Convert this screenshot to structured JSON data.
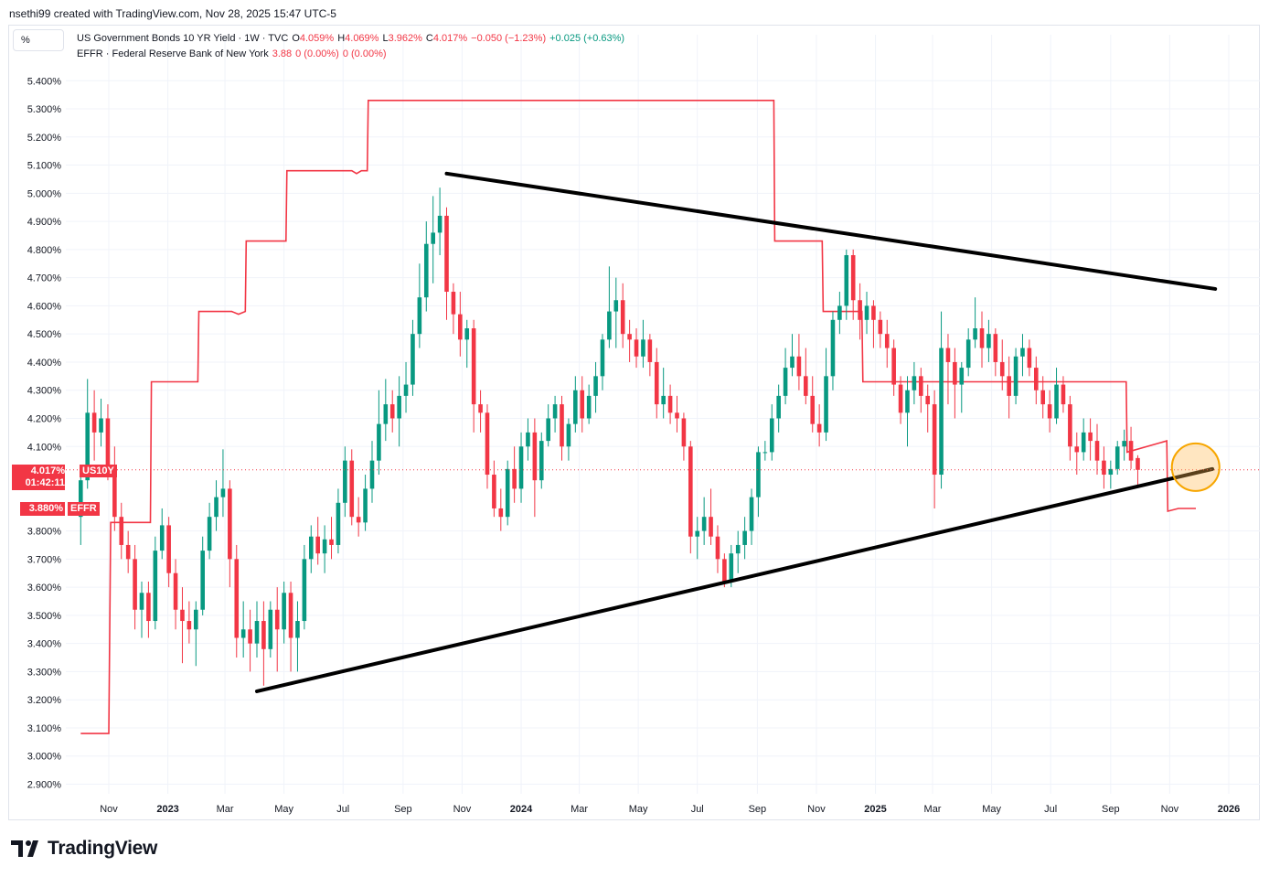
{
  "header": {
    "created_by": "nsethi99 created with TradingView.com, Nov 28, 2025 15:47 UTC-5"
  },
  "scale_button": "%",
  "legend": {
    "line1": {
      "symbol": "US Government Bonds 10 YR Yield · 1W · TVC",
      "o_label": "O",
      "o_value": "4.059%",
      "h_label": "H",
      "h_value": "4.069%",
      "l_label": "L",
      "l_value": "3.962%",
      "c_label": "C",
      "c_value": "4.017%",
      "change": "−0.050 (−1.23%)",
      "extra": "+0.025 (+0.63%)"
    },
    "line2": {
      "symbol": "EFFR · Federal Reserve Bank of New York",
      "value": "3.88",
      "change1": "0 (0.00%)",
      "change2": "0 (0.00%)"
    }
  },
  "price_tags": {
    "us10y_value": "4.017%",
    "us10y_symbol": "US10Y",
    "us10y_timer": "01:42:11",
    "effr_value": "3.880%",
    "effr_symbol": "EFFR"
  },
  "colors": {
    "up": "#089981",
    "down": "#f23645",
    "effr_line": "#f23645",
    "trendline": "#000000",
    "highlight": "#f7a600"
  },
  "footer": {
    "brand": "TradingView"
  },
  "chart_data": {
    "type": "candlestick",
    "title": "US Government Bonds 10 YR Yield · 1W · TVC",
    "y_axis": {
      "ticks": [
        "5.400%",
        "5.300%",
        "5.200%",
        "5.100%",
        "5.000%",
        "4.900%",
        "4.800%",
        "4.700%",
        "4.600%",
        "4.500%",
        "4.400%",
        "4.300%",
        "4.200%",
        "4.100%",
        "3.800%",
        "3.700%",
        "3.600%",
        "3.500%",
        "3.400%",
        "3.300%",
        "3.200%",
        "3.100%",
        "3.000%",
        "2.900%"
      ],
      "ylim": [
        2.86,
        5.51
      ]
    },
    "x_axis": {
      "ticks": [
        {
          "label": "Nov",
          "date": "2022-11-01",
          "bold": false
        },
        {
          "label": "2023",
          "date": "2023-01-01",
          "bold": true
        },
        {
          "label": "Mar",
          "date": "2023-03-01",
          "bold": false
        },
        {
          "label": "May",
          "date": "2023-05-01",
          "bold": false
        },
        {
          "label": "Jul",
          "date": "2023-07-01",
          "bold": false
        },
        {
          "label": "Sep",
          "date": "2023-09-01",
          "bold": false
        },
        {
          "label": "Nov",
          "date": "2023-11-01",
          "bold": false
        },
        {
          "label": "2024",
          "date": "2024-01-01",
          "bold": true
        },
        {
          "label": "Mar",
          "date": "2024-03-01",
          "bold": false
        },
        {
          "label": "May",
          "date": "2024-05-01",
          "bold": false
        },
        {
          "label": "Jul",
          "date": "2024-07-01",
          "bold": false
        },
        {
          "label": "Sep",
          "date": "2024-09-01",
          "bold": false
        },
        {
          "label": "Nov",
          "date": "2024-11-01",
          "bold": false
        },
        {
          "label": "2025",
          "date": "2025-01-01",
          "bold": true
        },
        {
          "label": "Mar",
          "date": "2025-03-01",
          "bold": false
        },
        {
          "label": "May",
          "date": "2025-05-01",
          "bold": false
        },
        {
          "label": "Jul",
          "date": "2025-07-01",
          "bold": false
        },
        {
          "label": "Sep",
          "date": "2025-09-01",
          "bold": false
        },
        {
          "label": "Nov",
          "date": "2025-11-01",
          "bold": false
        },
        {
          "label": "2026",
          "date": "2026-01-01",
          "bold": true
        }
      ]
    },
    "candle_start_date": "2022-10-03",
    "candle_interval": "1W",
    "candles": [
      [
        3.85,
        4.02,
        3.75,
        3.98
      ],
      [
        3.98,
        4.34,
        3.95,
        4.22
      ],
      [
        4.22,
        4.3,
        4.05,
        4.15
      ],
      [
        4.15,
        4.27,
        4.1,
        4.2
      ],
      [
        4.2,
        4.25,
        3.98,
        4.0
      ],
      [
        4.0,
        4.1,
        3.8,
        3.85
      ],
      [
        3.85,
        3.9,
        3.7,
        3.75
      ],
      [
        3.75,
        3.8,
        3.65,
        3.7
      ],
      [
        3.7,
        3.75,
        3.45,
        3.52
      ],
      [
        3.52,
        3.62,
        3.42,
        3.58
      ],
      [
        3.58,
        3.62,
        3.42,
        3.48
      ],
      [
        3.48,
        3.78,
        3.45,
        3.73
      ],
      [
        3.73,
        3.88,
        3.7,
        3.82
      ],
      [
        3.82,
        3.85,
        3.6,
        3.65
      ],
      [
        3.65,
        3.7,
        3.45,
        3.52
      ],
      [
        3.52,
        3.6,
        3.33,
        3.48
      ],
      [
        3.48,
        3.55,
        3.4,
        3.45
      ],
      [
        3.45,
        3.55,
        3.32,
        3.52
      ],
      [
        3.52,
        3.78,
        3.5,
        3.73
      ],
      [
        3.73,
        3.9,
        3.7,
        3.85
      ],
      [
        3.85,
        3.98,
        3.8,
        3.92
      ],
      [
        3.92,
        4.09,
        3.85,
        3.95
      ],
      [
        3.95,
        3.98,
        3.6,
        3.7
      ],
      [
        3.7,
        3.75,
        3.35,
        3.42
      ],
      [
        3.42,
        3.55,
        3.35,
        3.45
      ],
      [
        3.45,
        3.52,
        3.3,
        3.4
      ],
      [
        3.4,
        3.55,
        3.35,
        3.48
      ],
      [
        3.48,
        3.55,
        3.25,
        3.38
      ],
      [
        3.38,
        3.55,
        3.35,
        3.52
      ],
      [
        3.52,
        3.6,
        3.3,
        3.45
      ],
      [
        3.45,
        3.62,
        3.4,
        3.58
      ],
      [
        3.58,
        3.62,
        3.3,
        3.42
      ],
      [
        3.42,
        3.55,
        3.3,
        3.48
      ],
      [
        3.48,
        3.75,
        3.45,
        3.7
      ],
      [
        3.7,
        3.82,
        3.65,
        3.78
      ],
      [
        3.78,
        3.85,
        3.68,
        3.72
      ],
      [
        3.72,
        3.82,
        3.65,
        3.77
      ],
      [
        3.77,
        3.85,
        3.7,
        3.75
      ],
      [
        3.75,
        3.95,
        3.72,
        3.9
      ],
      [
        3.9,
        4.1,
        3.85,
        4.05
      ],
      [
        4.05,
        4.09,
        3.82,
        3.85
      ],
      [
        3.85,
        3.92,
        3.78,
        3.83
      ],
      [
        3.83,
        4.0,
        3.8,
        3.95
      ],
      [
        3.95,
        4.12,
        3.9,
        4.05
      ],
      [
        4.05,
        4.3,
        4.0,
        4.18
      ],
      [
        4.18,
        4.34,
        4.12,
        4.25
      ],
      [
        4.25,
        4.3,
        4.15,
        4.2
      ],
      [
        4.2,
        4.35,
        4.1,
        4.28
      ],
      [
        4.28,
        4.4,
        4.22,
        4.32
      ],
      [
        4.32,
        4.55,
        4.28,
        4.5
      ],
      [
        4.5,
        4.75,
        4.45,
        4.63
      ],
      [
        4.63,
        4.9,
        4.58,
        4.82
      ],
      [
        4.82,
        4.99,
        4.68,
        4.86
      ],
      [
        4.86,
        5.02,
        4.78,
        4.92
      ],
      [
        4.92,
        4.95,
        4.55,
        4.65
      ],
      [
        4.65,
        4.68,
        4.5,
        4.57
      ],
      [
        4.57,
        4.65,
        4.42,
        4.48
      ],
      [
        4.48,
        4.55,
        4.38,
        4.52
      ],
      [
        4.52,
        4.55,
        4.15,
        4.25
      ],
      [
        4.25,
        4.3,
        4.15,
        4.22
      ],
      [
        4.22,
        4.25,
        3.95,
        4.0
      ],
      [
        4.0,
        4.05,
        3.85,
        3.88
      ],
      [
        3.88,
        3.95,
        3.8,
        3.85
      ],
      [
        3.85,
        4.05,
        3.82,
        4.02
      ],
      [
        4.02,
        4.1,
        3.9,
        3.95
      ],
      [
        3.95,
        4.15,
        3.9,
        4.1
      ],
      [
        4.1,
        4.2,
        4.05,
        4.15
      ],
      [
        4.15,
        4.2,
        3.85,
        3.98
      ],
      [
        3.98,
        4.15,
        3.95,
        4.12
      ],
      [
        4.12,
        4.25,
        4.1,
        4.2
      ],
      [
        4.2,
        4.28,
        4.15,
        4.25
      ],
      [
        4.25,
        4.28,
        4.05,
        4.1
      ],
      [
        4.1,
        4.2,
        4.05,
        4.18
      ],
      [
        4.18,
        4.35,
        4.15,
        4.3
      ],
      [
        4.3,
        4.35,
        4.15,
        4.2
      ],
      [
        4.2,
        4.32,
        4.18,
        4.28
      ],
      [
        4.28,
        4.4,
        4.22,
        4.35
      ],
      [
        4.35,
        4.5,
        4.3,
        4.48
      ],
      [
        4.48,
        4.74,
        4.45,
        4.58
      ],
      [
        4.58,
        4.7,
        4.45,
        4.62
      ],
      [
        4.62,
        4.68,
        4.45,
        4.5
      ],
      [
        4.5,
        4.55,
        4.4,
        4.48
      ],
      [
        4.48,
        4.52,
        4.38,
        4.42
      ],
      [
        4.42,
        4.55,
        4.38,
        4.48
      ],
      [
        4.48,
        4.5,
        4.35,
        4.4
      ],
      [
        4.4,
        4.45,
        4.2,
        4.25
      ],
      [
        4.25,
        4.38,
        4.2,
        4.28
      ],
      [
        4.28,
        4.32,
        4.18,
        4.22
      ],
      [
        4.22,
        4.28,
        4.15,
        4.2
      ],
      [
        4.2,
        4.22,
        4.05,
        4.1
      ],
      [
        4.1,
        4.12,
        3.72,
        3.78
      ],
      [
        3.78,
        3.85,
        3.7,
        3.8
      ],
      [
        3.8,
        3.92,
        3.75,
        3.85
      ],
      [
        3.85,
        3.95,
        3.75,
        3.78
      ],
      [
        3.78,
        3.82,
        3.65,
        3.7
      ],
      [
        3.7,
        3.72,
        3.6,
        3.62
      ],
      [
        3.62,
        3.75,
        3.6,
        3.72
      ],
      [
        3.72,
        3.8,
        3.65,
        3.75
      ],
      [
        3.75,
        3.85,
        3.7,
        3.8
      ],
      [
        3.8,
        3.95,
        3.75,
        3.92
      ],
      [
        3.92,
        4.1,
        3.85,
        4.08
      ],
      [
        4.08,
        4.12,
        4.05,
        4.08
      ],
      [
        4.08,
        4.25,
        4.05,
        4.2
      ],
      [
        4.2,
        4.32,
        4.15,
        4.28
      ],
      [
        4.28,
        4.45,
        4.25,
        4.38
      ],
      [
        4.38,
        4.5,
        4.35,
        4.42
      ],
      [
        4.42,
        4.5,
        4.3,
        4.35
      ],
      [
        4.35,
        4.45,
        4.25,
        4.28
      ],
      [
        4.28,
        4.35,
        4.15,
        4.18
      ],
      [
        4.18,
        4.25,
        4.1,
        4.15
      ],
      [
        4.15,
        4.45,
        4.12,
        4.35
      ],
      [
        4.35,
        4.58,
        4.3,
        4.55
      ],
      [
        4.55,
        4.65,
        4.5,
        4.6
      ],
      [
        4.6,
        4.8,
        4.55,
        4.78
      ],
      [
        4.78,
        4.8,
        4.55,
        4.62
      ],
      [
        4.62,
        4.68,
        4.48,
        4.55
      ],
      [
        4.55,
        4.65,
        4.5,
        4.6
      ],
      [
        4.6,
        4.62,
        4.45,
        4.55
      ],
      [
        4.55,
        4.58,
        4.45,
        4.5
      ],
      [
        4.5,
        4.55,
        4.38,
        4.45
      ],
      [
        4.45,
        4.48,
        4.28,
        4.32
      ],
      [
        4.32,
        4.35,
        4.18,
        4.22
      ],
      [
        4.22,
        4.35,
        4.1,
        4.3
      ],
      [
        4.3,
        4.4,
        4.25,
        4.35
      ],
      [
        4.35,
        4.38,
        4.22,
        4.28
      ],
      [
        4.28,
        4.32,
        4.15,
        4.25
      ],
      [
        4.25,
        4.3,
        3.88,
        4.0
      ],
      [
        4.0,
        4.58,
        3.95,
        4.45
      ],
      [
        4.45,
        4.5,
        4.25,
        4.4
      ],
      [
        4.4,
        4.45,
        4.2,
        4.32
      ],
      [
        4.32,
        4.4,
        4.22,
        4.38
      ],
      [
        4.38,
        4.52,
        4.35,
        4.48
      ],
      [
        4.48,
        4.63,
        4.45,
        4.52
      ],
      [
        4.52,
        4.58,
        4.38,
        4.45
      ],
      [
        4.45,
        4.55,
        4.4,
        4.5
      ],
      [
        4.5,
        4.52,
        4.35,
        4.4
      ],
      [
        4.4,
        4.48,
        4.3,
        4.35
      ],
      [
        4.35,
        4.42,
        4.2,
        4.28
      ],
      [
        4.28,
        4.45,
        4.25,
        4.42
      ],
      [
        4.42,
        4.5,
        4.35,
        4.45
      ],
      [
        4.45,
        4.48,
        4.35,
        4.38
      ],
      [
        4.38,
        4.42,
        4.25,
        4.3
      ],
      [
        4.3,
        4.35,
        4.2,
        4.25
      ],
      [
        4.25,
        4.3,
        4.15,
        4.2
      ],
      [
        4.2,
        4.38,
        4.18,
        4.32
      ],
      [
        4.32,
        4.35,
        4.22,
        4.25
      ],
      [
        4.25,
        4.28,
        4.05,
        4.1
      ],
      [
        4.1,
        4.15,
        4.0,
        4.08
      ],
      [
        4.08,
        4.2,
        4.05,
        4.15
      ],
      [
        4.15,
        4.2,
        4.05,
        4.12
      ],
      [
        4.12,
        4.18,
        4.0,
        4.05
      ],
      [
        4.05,
        4.1,
        3.95,
        4.0
      ],
      [
        4.0,
        4.05,
        3.95,
        4.02
      ],
      [
        4.02,
        4.12,
        4.0,
        4.1
      ],
      [
        4.1,
        4.16,
        4.05,
        4.12
      ],
      [
        4.12,
        4.17,
        4.02,
        4.05
      ],
      [
        4.059,
        4.069,
        3.962,
        4.017
      ]
    ],
    "effr_series": [
      [
        "2022-10-03",
        3.08
      ],
      [
        "2022-11-01",
        3.08
      ],
      [
        "2022-11-03",
        3.83
      ],
      [
        "2022-12-14",
        3.83
      ],
      [
        "2022-12-15",
        4.33
      ],
      [
        "2023-02-01",
        4.33
      ],
      [
        "2023-02-02",
        4.58
      ],
      [
        "2023-03-08",
        4.58
      ],
      [
        "2023-03-15",
        4.57
      ],
      [
        "2023-03-22",
        4.58
      ],
      [
        "2023-03-23",
        4.83
      ],
      [
        "2023-05-03",
        4.83
      ],
      [
        "2023-05-04",
        5.08
      ],
      [
        "2023-07-10",
        5.08
      ],
      [
        "2023-07-15",
        5.07
      ],
      [
        "2023-07-20",
        5.08
      ],
      [
        "2023-07-26",
        5.08
      ],
      [
        "2023-07-27",
        5.33
      ],
      [
        "2024-09-18",
        5.33
      ],
      [
        "2024-09-19",
        4.83
      ],
      [
        "2024-11-07",
        4.83
      ],
      [
        "2024-11-08",
        4.58
      ],
      [
        "2024-12-18",
        4.58
      ],
      [
        "2024-12-19",
        4.33
      ],
      [
        "2025-09-17",
        4.33
      ],
      [
        "2025-09-18",
        4.08
      ],
      [
        "2025-10-29",
        4.12
      ],
      [
        "2025-10-30",
        3.87
      ],
      [
        "2025-11-10",
        3.88
      ],
      [
        "2025-11-28",
        3.88
      ]
    ],
    "trendlines": [
      {
        "start": [
          "2023-10-16",
          5.07
        ],
        "end": [
          "2025-12-18",
          4.66
        ]
      },
      {
        "start": [
          "2023-04-03",
          3.23
        ],
        "end": [
          "2025-12-15",
          4.02
        ]
      }
    ],
    "highlight_circle": {
      "date": "2025-11-24",
      "value": 4.02
    }
  }
}
